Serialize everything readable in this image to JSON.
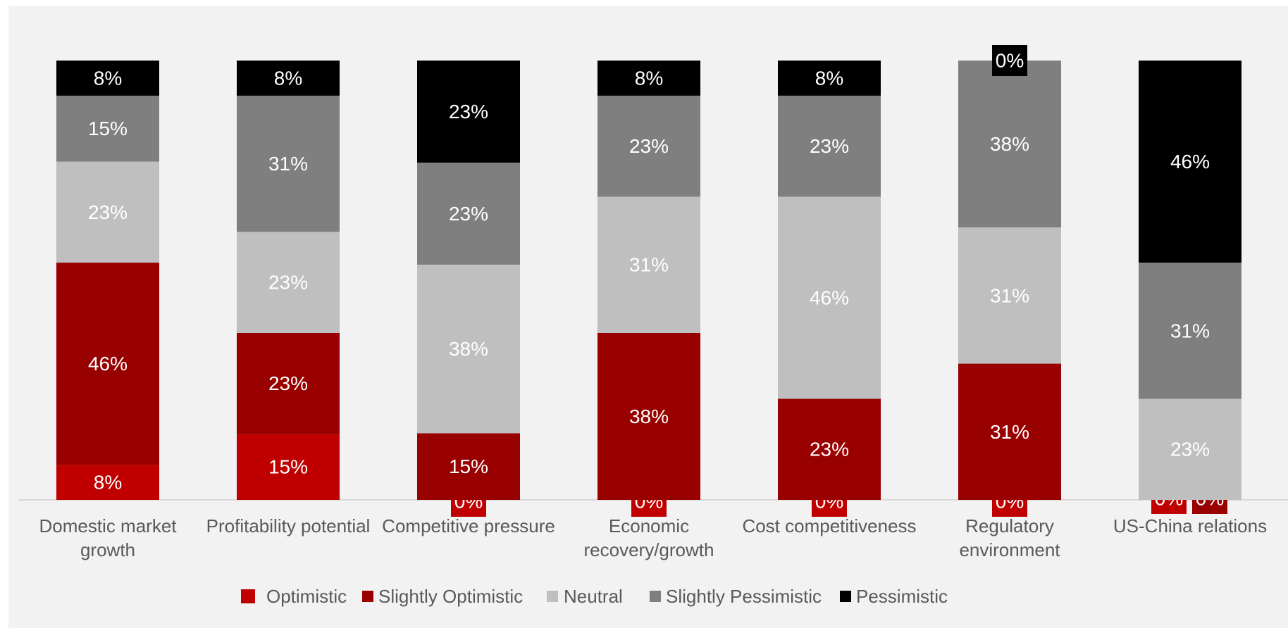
{
  "chart_data": {
    "type": "bar",
    "stacked": true,
    "categories": [
      "Domestic market growth",
      "Profitability potential",
      "Competitive pressure",
      "Economic recovery/growth",
      "Cost competitiveness",
      "Regulatory environment",
      "US-China relations"
    ],
    "category_lines": [
      [
        "Domestic market",
        "growth"
      ],
      [
        "Profitability potential"
      ],
      [
        "Competitive pressure"
      ],
      [
        "Economic",
        "recovery/growth"
      ],
      [
        "Cost competitiveness"
      ],
      [
        "Regulatory",
        "environment"
      ],
      [
        "US-China relations"
      ]
    ],
    "series": [
      {
        "name": "Optimistic",
        "color": "#c00000",
        "values": [
          8,
          15,
          0,
          0,
          0,
          0,
          0
        ],
        "labels": [
          "8%",
          "15%",
          "0%",
          "0%",
          "0%",
          "0%",
          "0%"
        ]
      },
      {
        "name": "Slightly Optimistic",
        "color": "#990000",
        "values": [
          46,
          23,
          15,
          38,
          23,
          31,
          0
        ],
        "labels": [
          "46%",
          "23%",
          "15%",
          "38%",
          "23%",
          "31%",
          "0%"
        ]
      },
      {
        "name": "Neutral",
        "color": "#bfbfbf",
        "values": [
          23,
          23,
          38,
          31,
          46,
          31,
          23
        ],
        "labels": [
          "23%",
          "23%",
          "38%",
          "31%",
          "46%",
          "31%",
          "23%"
        ]
      },
      {
        "name": "Slightly Pessimistic",
        "color": "#7f7f7f",
        "values": [
          15,
          31,
          23,
          23,
          23,
          38,
          31
        ],
        "labels": [
          "15%",
          "31%",
          "23%",
          "23%",
          "23%",
          "38%",
          "31%"
        ]
      },
      {
        "name": "Pessimistic",
        "color": "#000000",
        "values": [
          8,
          8,
          23,
          8,
          8,
          0,
          46
        ],
        "labels": [
          "8%",
          "8%",
          "23%",
          "8%",
          "8%",
          "0%",
          "46%"
        ]
      }
    ],
    "legend_position": "bottom",
    "grid": false,
    "background": "#f2f2f2",
    "title": "",
    "xlabel": "",
    "ylabel": ""
  }
}
